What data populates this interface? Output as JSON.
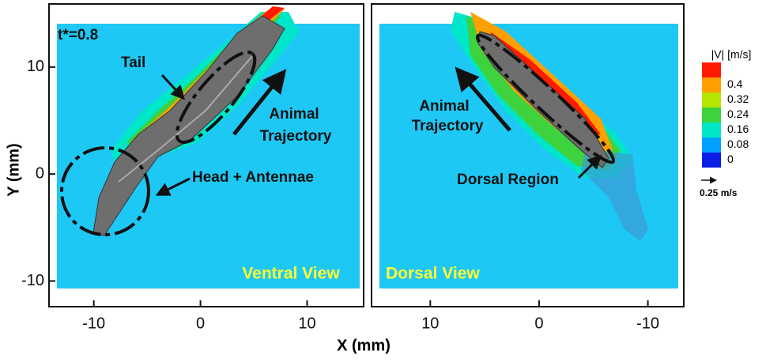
{
  "chart_data": [
    {
      "type": "contour",
      "title": "Ventral View",
      "annotations": [
        "t*=0.8",
        "Tail",
        "Head + Antennae",
        "Animal",
        "Trajectory"
      ],
      "xlim": [
        -14.2,
        15.3
      ],
      "ylim": [
        -12.4,
        15.9
      ],
      "xticks": [
        -10,
        0,
        10
      ],
      "yticks": [
        -10,
        0,
        10
      ]
    },
    {
      "type": "contour",
      "title": "Dorsal View",
      "annotations": [
        "Animal",
        "Trajectory",
        "Dorsal Region"
      ],
      "xlim": [
        15.4,
        -13.3
      ],
      "ylim": [
        -12.4,
        15.9
      ],
      "xticks": [
        10,
        0,
        -10
      ]
    }
  ],
  "xlabel": "X (mm)",
  "ylabel": "Y (mm)",
  "colorbar": {
    "title": "|V| [m/s]",
    "ticks": [
      0.4,
      0.32,
      0.24,
      0.16,
      0.08,
      0
    ],
    "colors": [
      "#ff1a00",
      "#ffa000",
      "#b4e600",
      "#3ed23e",
      "#00e6c8",
      "#00a0ff",
      "#0a1ee6"
    ]
  },
  "reference_vector": "0.25 m/s"
}
